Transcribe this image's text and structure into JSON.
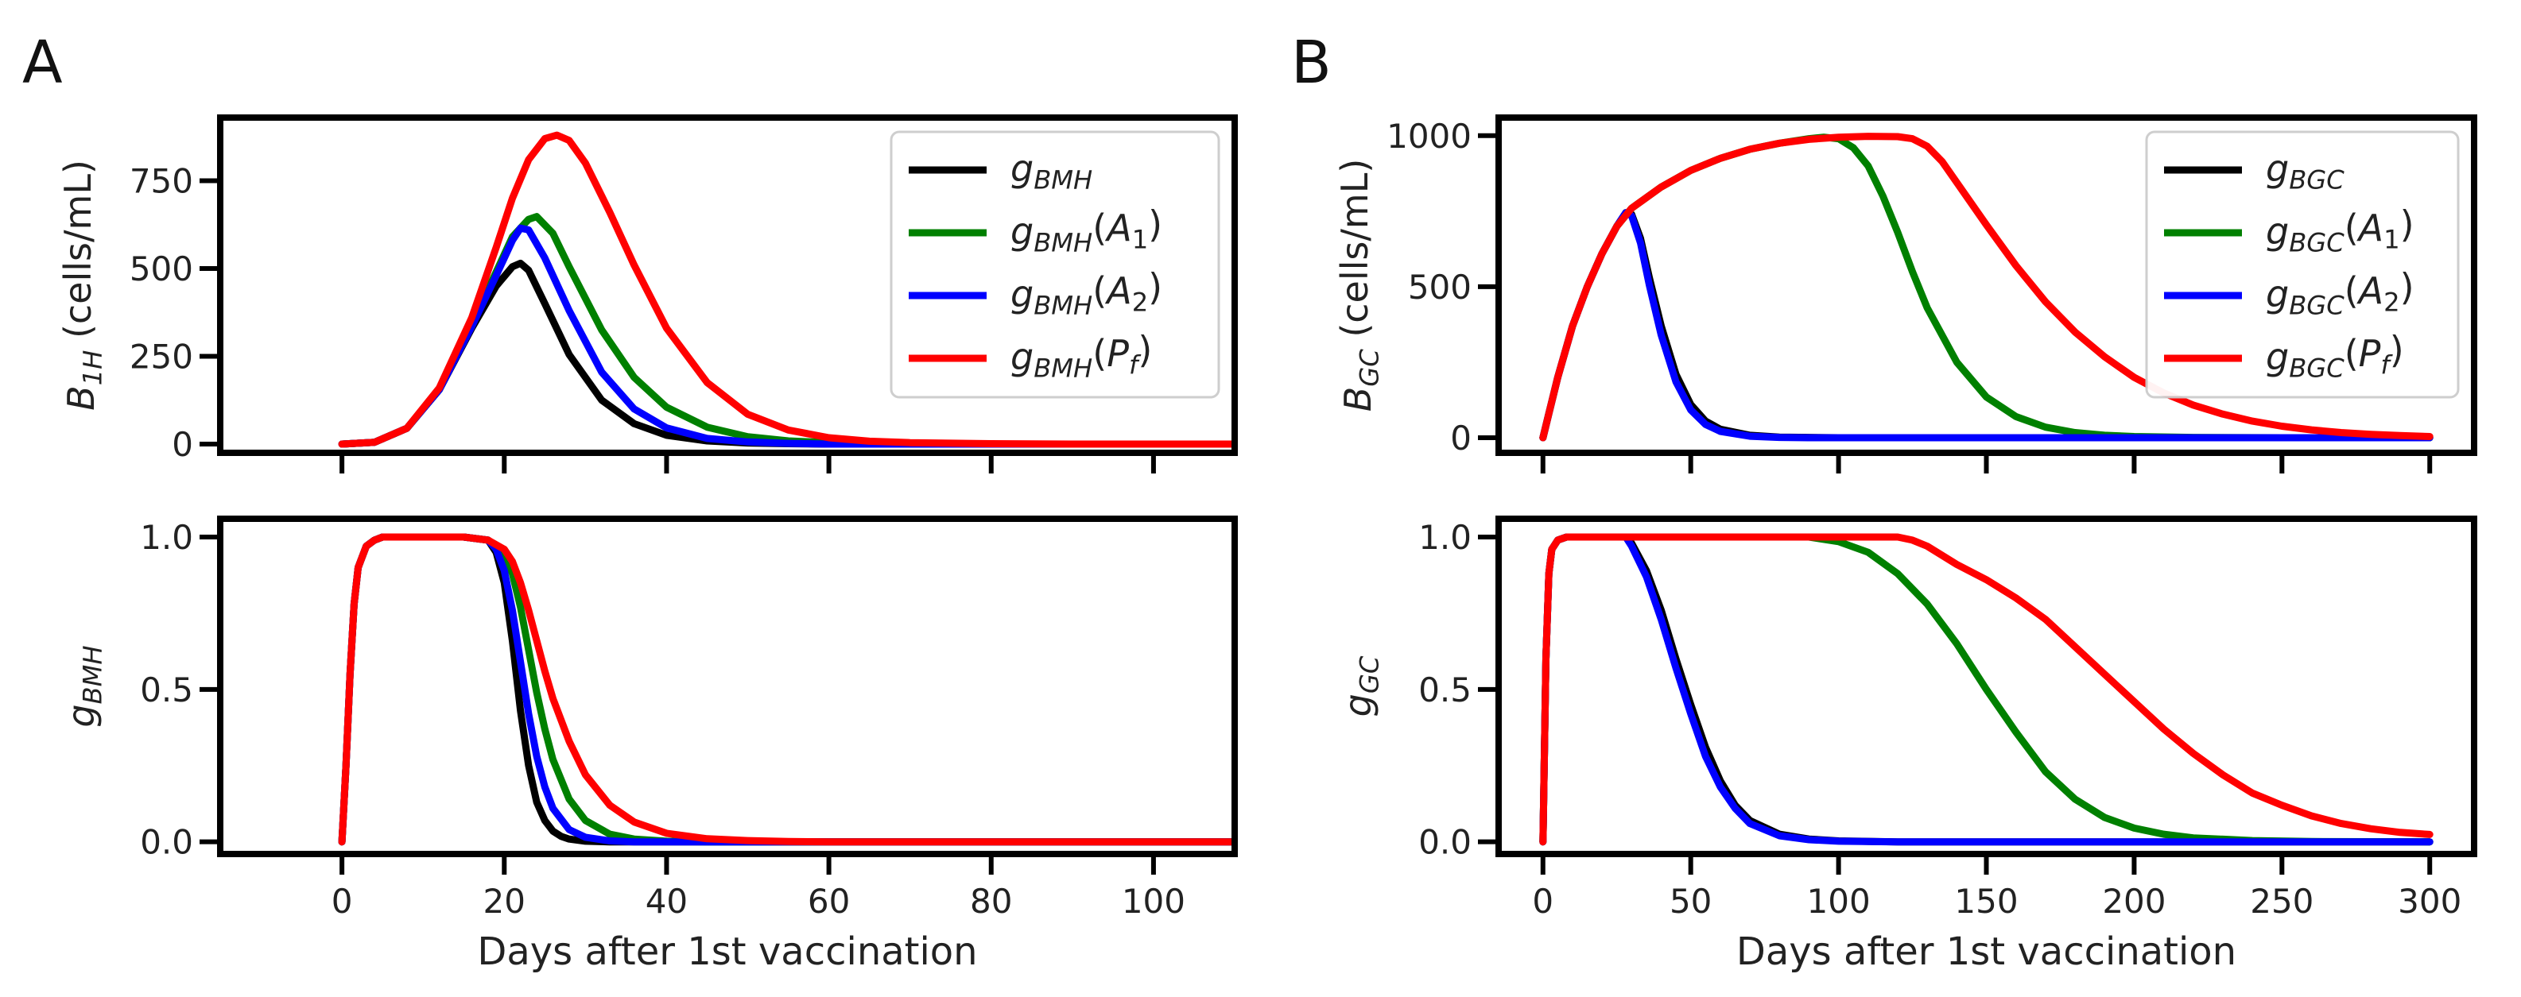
{
  "panels": {
    "a": "A",
    "b": "B"
  },
  "chart_data": [
    {
      "id": "A_top",
      "type": "line",
      "xlabel": "",
      "ylabel": {
        "base": "B",
        "sub": "1H",
        "unit": " (cells/mL)"
      },
      "xlim": [
        -15,
        110
      ],
      "ylim": [
        -25,
        930
      ],
      "xticks": [
        0,
        20,
        40,
        60,
        80,
        100
      ],
      "xtick_labels": [
        "",
        "",
        "",
        "",
        "",
        ""
      ],
      "yticks": [
        0,
        250,
        500,
        750
      ],
      "ytick_labels": [
        "0",
        "250",
        "500",
        "750"
      ],
      "legend_position": "top-right",
      "series": [
        {
          "name": "g_BMH",
          "label_base": "g",
          "label_sub": "BMH",
          "arg_base": "",
          "arg_sub": "",
          "color": "#000000",
          "x": [
            0,
            4,
            8,
            12,
            16,
            19,
            21,
            22,
            23,
            25,
            28,
            32,
            36,
            40,
            45,
            50,
            55,
            60,
            70,
            80,
            90,
            110
          ],
          "y": [
            0,
            5,
            45,
            155,
            330,
            450,
            505,
            515,
            495,
            400,
            255,
            125,
            58,
            25,
            9,
            3,
            1,
            0,
            0,
            0,
            0,
            0
          ]
        },
        {
          "name": "g_BMH(A1)",
          "label_base": "g",
          "label_sub": "BMH",
          "arg_base": "A",
          "arg_sub": "1",
          "color": "#008000",
          "x": [
            0,
            4,
            8,
            12,
            16,
            19,
            21,
            23,
            24,
            26,
            28,
            32,
            36,
            40,
            45,
            50,
            55,
            60,
            70,
            80,
            90,
            110
          ],
          "y": [
            0,
            5,
            45,
            155,
            340,
            490,
            590,
            640,
            648,
            600,
            505,
            325,
            190,
            105,
            48,
            21,
            9,
            4,
            1,
            0,
            0,
            0
          ]
        },
        {
          "name": "g_BMH(A2)",
          "label_base": "g",
          "label_sub": "BMH",
          "arg_base": "A",
          "arg_sub": "2",
          "color": "#0000ff",
          "x": [
            0,
            4,
            8,
            12,
            16,
            19,
            21,
            22,
            23,
            25,
            28,
            32,
            36,
            40,
            45,
            50,
            55,
            60,
            70,
            80,
            90,
            110
          ],
          "y": [
            0,
            5,
            45,
            155,
            335,
            480,
            580,
            615,
            610,
            530,
            380,
            205,
            100,
            46,
            16,
            6,
            2,
            0,
            0,
            0,
            0,
            0
          ]
        },
        {
          "name": "g_BMH(Pf)",
          "label_base": "g",
          "label_sub": "BMH",
          "arg_base": "P",
          "arg_sub": "f",
          "color": "#ff0000",
          "x": [
            0,
            4,
            8,
            12,
            16,
            19,
            21,
            23,
            25,
            26.5,
            28,
            30,
            33,
            36,
            40,
            45,
            50,
            55,
            60,
            65,
            70,
            80,
            90,
            110
          ],
          "y": [
            0,
            5,
            45,
            160,
            360,
            560,
            700,
            810,
            870,
            880,
            865,
            800,
            660,
            510,
            330,
            175,
            85,
            40,
            18,
            8,
            4,
            1,
            0,
            0
          ]
        }
      ]
    },
    {
      "id": "A_bottom",
      "type": "line",
      "xlabel": "Days after 1st vaccination",
      "ylabel": {
        "base": "g",
        "sub": "BMH",
        "unit": ""
      },
      "xlim": [
        -15,
        110
      ],
      "ylim": [
        -0.04,
        1.06
      ],
      "xticks": [
        0,
        20,
        40,
        60,
        80,
        100
      ],
      "xtick_labels": [
        "0",
        "20",
        "40",
        "60",
        "80",
        "100"
      ],
      "yticks": [
        0.0,
        0.5,
        1.0
      ],
      "ytick_labels": [
        "0.0",
        "0.5",
        "1.0"
      ],
      "series": [
        {
          "name": "g_BMH",
          "color": "#000000",
          "x": [
            0,
            0.5,
            1,
            1.5,
            2,
            3,
            4,
            5,
            6,
            8,
            15,
            18,
            19,
            20,
            21,
            22,
            23,
            24,
            25,
            26,
            27,
            28,
            30,
            33,
            110
          ],
          "y": [
            0,
            0.25,
            0.55,
            0.78,
            0.9,
            0.97,
            0.99,
            1.0,
            1.0,
            1.0,
            1.0,
            0.99,
            0.95,
            0.85,
            0.66,
            0.43,
            0.25,
            0.13,
            0.07,
            0.035,
            0.018,
            0.009,
            0.002,
            0,
            0
          ]
        },
        {
          "name": "g_BMH(A1)",
          "color": "#008000",
          "x": [
            0,
            0.5,
            1,
            1.5,
            2,
            3,
            4,
            5,
            6,
            8,
            15,
            18,
            20,
            21,
            22,
            23,
            24,
            25,
            26,
            28,
            30,
            33,
            36,
            40,
            45,
            110
          ],
          "y": [
            0,
            0.25,
            0.55,
            0.78,
            0.9,
            0.97,
            0.99,
            1.0,
            1.0,
            1.0,
            1.0,
            0.99,
            0.95,
            0.88,
            0.77,
            0.63,
            0.49,
            0.37,
            0.27,
            0.14,
            0.07,
            0.025,
            0.009,
            0.002,
            0,
            0
          ]
        },
        {
          "name": "g_BMH(A2)",
          "color": "#0000ff",
          "x": [
            0,
            0.5,
            1,
            1.5,
            2,
            3,
            4,
            5,
            6,
            8,
            15,
            18,
            19,
            20,
            21,
            22,
            23,
            24,
            25,
            26,
            28,
            30,
            33,
            36,
            110
          ],
          "y": [
            0,
            0.25,
            0.55,
            0.78,
            0.9,
            0.97,
            0.99,
            1.0,
            1.0,
            1.0,
            1.0,
            0.99,
            0.96,
            0.89,
            0.76,
            0.59,
            0.42,
            0.28,
            0.18,
            0.11,
            0.04,
            0.015,
            0.003,
            0,
            0
          ]
        },
        {
          "name": "g_BMH(Pf)",
          "color": "#ff0000",
          "x": [
            0,
            0.5,
            1,
            1.5,
            2,
            3,
            4,
            5,
            6,
            8,
            15,
            18,
            20,
            21,
            22,
            23,
            24,
            25,
            26,
            28,
            30,
            33,
            36,
            40,
            45,
            50,
            55,
            60,
            110
          ],
          "y": [
            0,
            0.25,
            0.55,
            0.78,
            0.9,
            0.97,
            0.99,
            1.0,
            1.0,
            1.0,
            1.0,
            0.99,
            0.96,
            0.92,
            0.85,
            0.76,
            0.66,
            0.56,
            0.47,
            0.33,
            0.22,
            0.12,
            0.065,
            0.028,
            0.01,
            0.004,
            0.001,
            0,
            0
          ]
        }
      ]
    },
    {
      "id": "B_top",
      "type": "line",
      "xlabel": "",
      "ylabel": {
        "base": "B",
        "sub": "GC",
        "unit": " (cells/mL)"
      },
      "xlim": [
        -15,
        315
      ],
      "ylim": [
        -50,
        1060
      ],
      "xticks": [
        0,
        50,
        100,
        150,
        200,
        250,
        300
      ],
      "xtick_labels": [
        "",
        "",
        "",
        "",
        "",
        "",
        ""
      ],
      "yticks": [
        0,
        500,
        1000
      ],
      "ytick_labels": [
        "0",
        "500",
        "1000"
      ],
      "legend_position": "top-right",
      "series": [
        {
          "name": "g_BGC",
          "label_base": "g",
          "label_sub": "BGC",
          "arg_base": "",
          "arg_sub": "",
          "color": "#000000",
          "x": [
            0,
            2,
            5,
            10,
            15,
            20,
            25,
            28,
            30,
            33,
            36,
            40,
            45,
            50,
            55,
            60,
            70,
            80,
            90,
            100,
            120,
            150,
            200,
            300
          ],
          "y": [
            0,
            80,
            200,
            370,
            500,
            610,
            700,
            745,
            740,
            660,
            530,
            370,
            210,
            110,
            55,
            28,
            8,
            2,
            1,
            0,
            0,
            0,
            0,
            0
          ]
        },
        {
          "name": "g_BGC(A1)",
          "label_base": "g",
          "label_sub": "BGC",
          "arg_base": "A",
          "arg_sub": "1",
          "color": "#008000",
          "x": [
            0,
            2,
            5,
            10,
            15,
            20,
            25,
            30,
            40,
            50,
            60,
            70,
            80,
            90,
            95,
            100,
            105,
            110,
            115,
            120,
            125,
            130,
            140,
            150,
            160,
            170,
            180,
            190,
            200,
            220,
            250,
            300
          ],
          "y": [
            0,
            80,
            200,
            370,
            500,
            610,
            700,
            760,
            830,
            885,
            925,
            955,
            975,
            990,
            995,
            990,
            960,
            900,
            800,
            680,
            550,
            430,
            250,
            135,
            70,
            35,
            17,
            8,
            4,
            1,
            0,
            0
          ]
        },
        {
          "name": "g_BGC(A2)",
          "label_base": "g",
          "label_sub": "BGC",
          "arg_base": "A",
          "arg_sub": "2",
          "color": "#0000ff",
          "x": [
            0,
            2,
            5,
            10,
            15,
            20,
            25,
            28,
            30,
            33,
            36,
            40,
            45,
            50,
            55,
            60,
            70,
            80,
            90,
            100,
            120,
            150,
            200,
            300
          ],
          "y": [
            0,
            80,
            200,
            370,
            500,
            610,
            700,
            745,
            735,
            645,
            505,
            340,
            185,
            92,
            44,
            21,
            5,
            1,
            0,
            0,
            0,
            0,
            0,
            0
          ]
        },
        {
          "name": "g_BGC(Pf)",
          "label_base": "g",
          "label_sub": "BGC",
          "arg_base": "P",
          "arg_sub": "f",
          "color": "#ff0000",
          "x": [
            0,
            2,
            5,
            10,
            15,
            20,
            25,
            30,
            40,
            50,
            60,
            70,
            80,
            90,
            100,
            110,
            120,
            125,
            130,
            135,
            140,
            150,
            160,
            170,
            180,
            190,
            200,
            210,
            220,
            230,
            240,
            250,
            260,
            270,
            280,
            290,
            300
          ],
          "y": [
            0,
            80,
            200,
            370,
            500,
            610,
            700,
            760,
            830,
            885,
            925,
            955,
            975,
            988,
            995,
            998,
            997,
            990,
            965,
            915,
            845,
            705,
            570,
            450,
            350,
            268,
            200,
            148,
            108,
            78,
            55,
            38,
            26,
            17,
            11,
            7,
            4
          ]
        }
      ]
    },
    {
      "id": "B_bottom",
      "type": "line",
      "xlabel": "Days after 1st vaccination",
      "ylabel": {
        "base": "g",
        "sub": "GC",
        "unit": ""
      },
      "xlim": [
        -15,
        315
      ],
      "ylim": [
        -0.04,
        1.06
      ],
      "xticks": [
        0,
        50,
        100,
        150,
        200,
        250,
        300
      ],
      "xtick_labels": [
        "0",
        "50",
        "100",
        "150",
        "200",
        "250",
        "300"
      ],
      "yticks": [
        0.0,
        0.5,
        1.0
      ],
      "ytick_labels": [
        "0.0",
        "0.5",
        "1.0"
      ],
      "series": [
        {
          "name": "g_BGC",
          "color": "#000000",
          "x": [
            0,
            1,
            2,
            3,
            5,
            8,
            28,
            30,
            35,
            40,
            45,
            50,
            55,
            60,
            65,
            70,
            80,
            90,
            100,
            120,
            150,
            300
          ],
          "y": [
            0,
            0.6,
            0.88,
            0.96,
            0.99,
            1.0,
            1.0,
            0.98,
            0.89,
            0.76,
            0.6,
            0.45,
            0.31,
            0.2,
            0.12,
            0.07,
            0.025,
            0.009,
            0.003,
            0,
            0,
            0
          ]
        },
        {
          "name": "g_BGC(A1)",
          "color": "#008000",
          "x": [
            0,
            1,
            2,
            3,
            5,
            8,
            90,
            100,
            110,
            120,
            130,
            140,
            150,
            160,
            170,
            180,
            190,
            200,
            210,
            220,
            240,
            260,
            300
          ],
          "y": [
            0,
            0.6,
            0.88,
            0.96,
            0.99,
            1.0,
            1.0,
            0.985,
            0.95,
            0.88,
            0.78,
            0.65,
            0.5,
            0.36,
            0.23,
            0.14,
            0.08,
            0.045,
            0.025,
            0.013,
            0.004,
            0.001,
            0
          ]
        },
        {
          "name": "g_BGC(A2)",
          "color": "#0000ff",
          "x": [
            0,
            1,
            2,
            3,
            5,
            8,
            28,
            30,
            35,
            40,
            45,
            50,
            55,
            60,
            65,
            70,
            80,
            90,
            100,
            120,
            150,
            300
          ],
          "y": [
            0,
            0.6,
            0.88,
            0.96,
            0.99,
            1.0,
            1.0,
            0.97,
            0.87,
            0.73,
            0.57,
            0.42,
            0.28,
            0.18,
            0.11,
            0.06,
            0.02,
            0.007,
            0.002,
            0,
            0,
            0
          ]
        },
        {
          "name": "g_BGC(Pf)",
          "color": "#ff0000",
          "x": [
            0,
            1,
            2,
            3,
            5,
            8,
            120,
            125,
            130,
            135,
            140,
            150,
            160,
            170,
            180,
            190,
            200,
            210,
            220,
            230,
            240,
            250,
            260,
            270,
            280,
            290,
            300
          ],
          "y": [
            0,
            0.6,
            0.88,
            0.96,
            0.99,
            1.0,
            1.0,
            0.99,
            0.97,
            0.94,
            0.91,
            0.86,
            0.8,
            0.73,
            0.64,
            0.55,
            0.46,
            0.37,
            0.29,
            0.22,
            0.16,
            0.12,
            0.085,
            0.06,
            0.043,
            0.031,
            0.024
          ]
        }
      ]
    }
  ]
}
